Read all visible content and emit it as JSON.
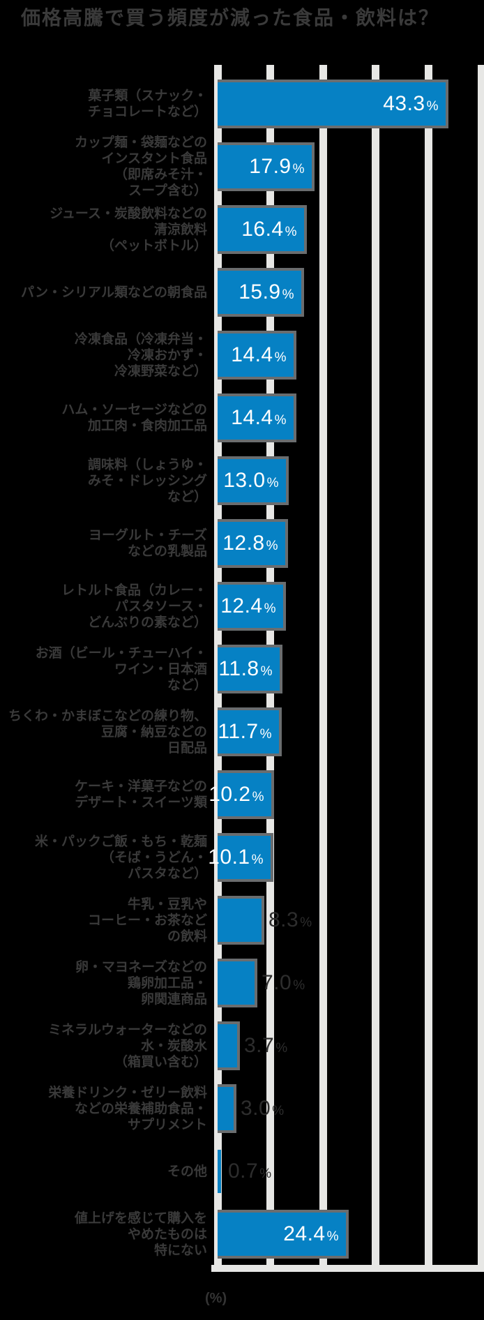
{
  "page": {
    "background": "#000000"
  },
  "title": {
    "text": "価格高騰で買う頻度が減った食品・飲料は？"
  },
  "axis_note": "(%)",
  "chart_data": {
    "type": "bar",
    "orientation": "horizontal",
    "title": "価格高騰で買う頻度が減った食品・飲料は？",
    "xlabel": "(%)",
    "ylabel": "",
    "xlim": [
      0,
      50
    ],
    "grid": true,
    "gridline_percents": [
      0,
      10,
      20,
      30,
      40,
      50
    ],
    "unit": "%",
    "categories": [
      "菓子類（スナック・チョコレートなど）",
      "カップ麺・袋麺などのインスタント食品（即席みそ汁・スープ含む）",
      "ジュース・炭酸飲料などの清涼飲料（ペットボトル）",
      "パン・シリアル類などの朝食品",
      "冷凍食品（冷凍弁当・冷凍おかず・冷凍野菜など）",
      "ハム・ソーセージなどの加工肉・食肉加工品",
      "調味料（しょうゆ・みそ・ドレッシングなど）",
      "ヨーグルト・チーズなどの乳製品",
      "レトルト食品（カレー・パスタソース・どんぶりの素など）",
      "お酒（ビール・チューハイ・ワイン・日本酒など）",
      "ちくわ・かまぼこなどの練り物、豆腐・納豆などの日配品",
      "ケーキ・洋菓子などのデザート・スイーツ類",
      "米・パックご飯・もち・乾麺（そば・うどん・パスタなど）",
      "牛乳・豆乳やコーヒー・お茶などの飲料",
      "卵・マヨネーズなどの鶏卵加工品・卵関連商品",
      "ミネラルウォーターなどの水・炭酸水（箱買い含む）",
      "栄養ドリンク・ゼリー飲料などの栄養補助食品・サプリメント",
      "その他",
      "値上げを感じて購入をやめたものは特にない"
    ],
    "label_lines": [
      [
        "菓子類（スナック・",
        "チョコレートなど）"
      ],
      [
        "カップ麺・袋麺などの",
        "インスタント食品",
        "（即席みそ汁・",
        "スープ含む）"
      ],
      [
        "ジュース・炭酸飲料などの",
        "清涼飲料",
        "（ペットボトル）"
      ],
      [
        "パン・シリアル類などの朝食品"
      ],
      [
        "冷凍食品（冷凍弁当・",
        "冷凍おかず・",
        "冷凍野菜など）"
      ],
      [
        "ハム・ソーセージなどの",
        "加工肉・食肉加工品"
      ],
      [
        "調味料（しょうゆ・",
        "みそ・ドレッシング",
        "など）"
      ],
      [
        "ヨーグルト・チーズ",
        "などの乳製品"
      ],
      [
        "レトルト食品（カレー・",
        "パスタソース・",
        "どんぶりの素など）"
      ],
      [
        "お酒（ビール・チューハイ・",
        "ワイン・日本酒",
        "など）"
      ],
      [
        "ちくわ・かまぼこなどの練り物、",
        "豆腐・納豆などの",
        "日配品"
      ],
      [
        "ケーキ・洋菓子などの",
        "デザート・スイーツ類"
      ],
      [
        "米・パックご飯・もち・乾麺",
        "（そば・うどん・",
        "パスタなど）"
      ],
      [
        "牛乳・豆乳や",
        "コーヒー・お茶など",
        "の飲料"
      ],
      [
        "卵・マヨネーズなどの",
        "鶏卵加工品・",
        "卵関連商品"
      ],
      [
        "ミネラルウォーターなどの",
        "水・炭酸水",
        "（箱買い含む）"
      ],
      [
        "栄養ドリンク・ゼリー飲料",
        "などの栄養補助食品・",
        "サプリメント"
      ],
      [
        "その他"
      ],
      [
        "値上げを感じて購入を",
        "やめたものは",
        "特にない"
      ]
    ],
    "values": [
      43.3,
      17.9,
      16.4,
      15.9,
      14.4,
      14.4,
      13.0,
      12.8,
      12.4,
      11.8,
      11.7,
      10.2,
      10.1,
      8.3,
      7.0,
      3.7,
      3.0,
      0.7,
      24.4
    ],
    "value_display": [
      "43.3",
      "17.9",
      "16.4",
      "15.9",
      "14.4",
      "14.4",
      "13.0",
      "12.8",
      "12.4",
      "11.8",
      "11.7",
      "10.2",
      "10.1",
      "8.3",
      "7.0",
      "3.7",
      "3.0",
      "0.7",
      "24.4"
    ],
    "legend": null,
    "colors": {
      "background": "#000000",
      "bar": "#0681c4",
      "bar_border": "#6a6d6f",
      "gridline": "#e7e7e5",
      "title_text": "#3a3a3a",
      "label_text": "#3a3a3a",
      "value_inside": "#ffffff",
      "value_outside": "#2d2d2d"
    }
  }
}
